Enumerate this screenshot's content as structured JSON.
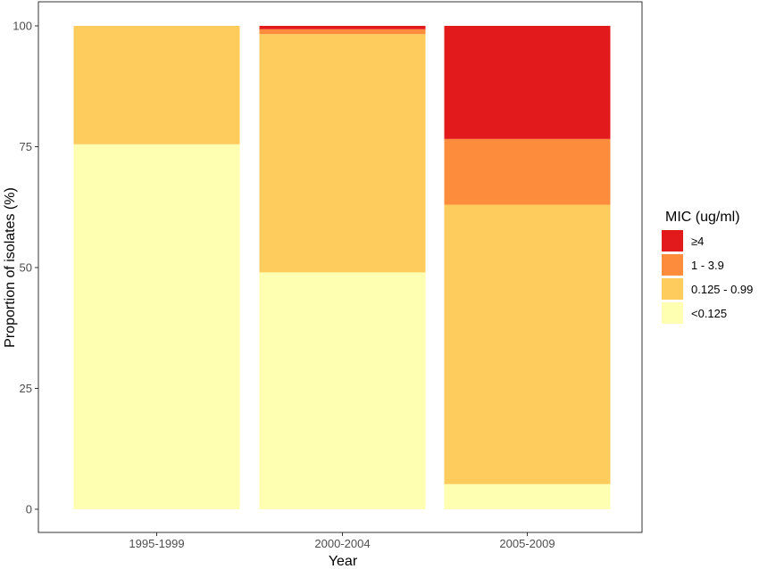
{
  "chart_data": {
    "type": "bar",
    "stacked": true,
    "categories": [
      "1995-1999",
      "2000-2004",
      "2005-2009"
    ],
    "series": [
      {
        "name": "<0.125",
        "color": "#FFFFB2",
        "values": [
          75.5,
          49.0,
          5.2
        ]
      },
      {
        "name": "0.125 - 0.99",
        "color": "#FECC5C",
        "values": [
          24.5,
          49.3,
          57.8
        ]
      },
      {
        "name": "1 - 3.9",
        "color": "#FD8D3C",
        "values": [
          0,
          1.0,
          13.6
        ]
      },
      {
        "name": "≥4",
        "color": "#E31A1C",
        "values": [
          0,
          0.7,
          23.4
        ]
      }
    ],
    "xlabel": "Year",
    "ylabel": "Proportion of isolates (%)",
    "ylim": [
      0,
      100
    ],
    "yticks": [
      0,
      25,
      50,
      75,
      100
    ],
    "grid": false,
    "legend": {
      "title": "MIC (ug/ml)",
      "placement": "right",
      "order": [
        "≥4",
        "1 - 3.9",
        "0.125 - 0.99",
        "<0.125"
      ]
    }
  }
}
